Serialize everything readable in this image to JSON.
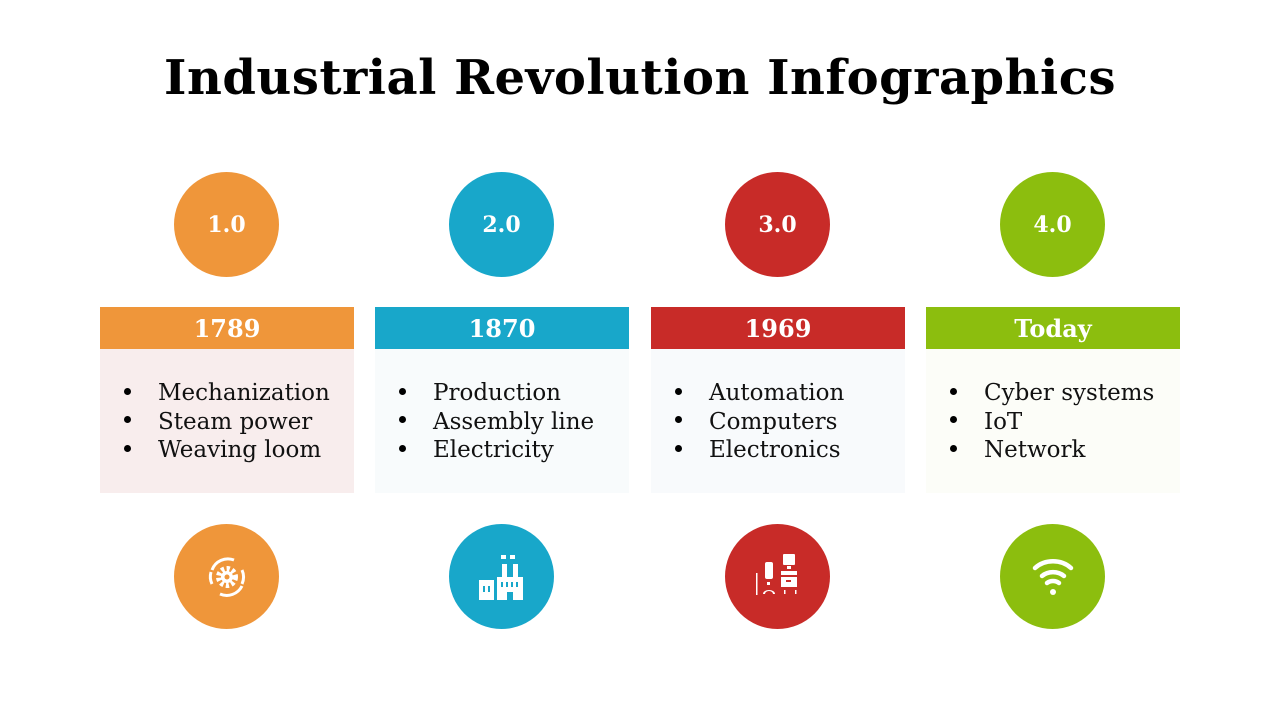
{
  "title": "Industrial Revolution Infographics",
  "stages": [
    {
      "version": "1.0",
      "year": "1789",
      "items": [
        "Mechanization",
        "Steam power",
        "Weaving loom"
      ],
      "color": "#ef963a",
      "panel_bg": "#f8eded",
      "icon": "gear-cycle-icon"
    },
    {
      "version": "2.0",
      "year": "1870",
      "items": [
        "Production",
        "Assembly line",
        "Electricity"
      ],
      "color": "#18a7ca",
      "panel_bg": "#f8fbfc",
      "icon": "factory-icon"
    },
    {
      "version": "3.0",
      "year": "1969",
      "items": [
        "Automation",
        "Computers",
        "Electronics"
      ],
      "color": "#c82b28",
      "panel_bg": "#f8fafc",
      "icon": "computer-workstation-icon"
    },
    {
      "version": "4.0",
      "year": "Today",
      "items": [
        "Cyber systems",
        "IoT",
        "Network"
      ],
      "color": "#8cbe0e",
      "panel_bg": "#fcfdf8",
      "icon": "wifi-icon"
    }
  ]
}
